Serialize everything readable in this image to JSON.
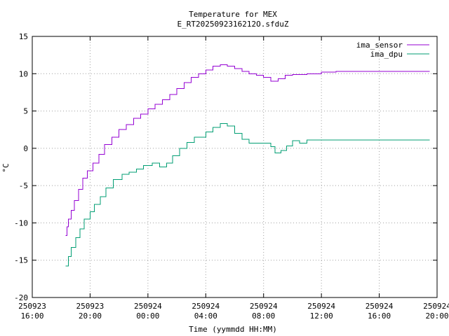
{
  "chart_data": {
    "type": "line",
    "title": "Temperature for MEX",
    "subtitle": "E_RT2025092316212O.sfduZ",
    "xlabel": "Time (yymmdd HH:MM)",
    "ylabel": "°C",
    "xlim_hours": [
      16,
      44
    ],
    "ylim": [
      -20,
      15
    ],
    "yticks": [
      -20,
      -15,
      -10,
      -5,
      0,
      5,
      10,
      15
    ],
    "xticks": [
      {
        "hours": 16,
        "date": "250923",
        "time": "16:00"
      },
      {
        "hours": 20,
        "date": "250923",
        "time": "20:00"
      },
      {
        "hours": 24,
        "date": "250924",
        "time": "00:00"
      },
      {
        "hours": 28,
        "date": "250924",
        "time": "04:00"
      },
      {
        "hours": 32,
        "date": "250924",
        "time": "08:00"
      },
      {
        "hours": 36,
        "date": "250924",
        "time": "12:00"
      },
      {
        "hours": 40,
        "date": "250924",
        "time": "16:00"
      },
      {
        "hours": 44,
        "date": "250924",
        "time": "20:00"
      }
    ],
    "grid": true,
    "legend_position": "top-right",
    "series": [
      {
        "name": "ima_sensor",
        "color": "#9400d3",
        "points": [
          [
            18.3,
            -11.7
          ],
          [
            18.4,
            -10.5
          ],
          [
            18.5,
            -9.5
          ],
          [
            18.7,
            -8.3
          ],
          [
            18.9,
            -7.0
          ],
          [
            19.2,
            -5.5
          ],
          [
            19.5,
            -4.0
          ],
          [
            19.8,
            -3.0
          ],
          [
            20.2,
            -2.0
          ],
          [
            20.6,
            -0.8
          ],
          [
            21.0,
            0.5
          ],
          [
            21.5,
            1.5
          ],
          [
            22.0,
            2.5
          ],
          [
            22.5,
            3.2
          ],
          [
            23.0,
            4.0
          ],
          [
            23.5,
            4.6
          ],
          [
            24.0,
            5.3
          ],
          [
            24.5,
            5.9
          ],
          [
            25.0,
            6.5
          ],
          [
            25.5,
            7.2
          ],
          [
            26.0,
            8.0
          ],
          [
            26.5,
            8.8
          ],
          [
            27.0,
            9.5
          ],
          [
            27.5,
            10.0
          ],
          [
            28.0,
            10.5
          ],
          [
            28.5,
            11.0
          ],
          [
            29.0,
            11.2
          ],
          [
            29.5,
            11.0
          ],
          [
            30.0,
            10.7
          ],
          [
            30.5,
            10.3
          ],
          [
            31.0,
            10.0
          ],
          [
            31.5,
            9.8
          ],
          [
            32.0,
            9.5
          ],
          [
            32.5,
            9.0
          ],
          [
            33.0,
            9.3
          ],
          [
            33.5,
            9.8
          ],
          [
            34.0,
            9.9
          ],
          [
            35.0,
            10.0
          ],
          [
            36.0,
            10.2
          ],
          [
            37.0,
            10.3
          ],
          [
            40.0,
            10.3
          ],
          [
            43.5,
            10.3
          ]
        ]
      },
      {
        "name": "ima_dpu",
        "color": "#009e73",
        "points": [
          [
            18.3,
            -15.8
          ],
          [
            18.5,
            -14.5
          ],
          [
            18.7,
            -13.3
          ],
          [
            19.0,
            -12.0
          ],
          [
            19.3,
            -10.8
          ],
          [
            19.6,
            -9.5
          ],
          [
            20.0,
            -8.5
          ],
          [
            20.3,
            -7.5
          ],
          [
            20.7,
            -6.5
          ],
          [
            21.1,
            -5.3
          ],
          [
            21.6,
            -4.2
          ],
          [
            22.2,
            -3.5
          ],
          [
            22.7,
            -3.2
          ],
          [
            23.2,
            -2.8
          ],
          [
            23.7,
            -2.3
          ],
          [
            24.3,
            -2.0
          ],
          [
            24.8,
            -2.5
          ],
          [
            25.3,
            -2.0
          ],
          [
            25.7,
            -1.0
          ],
          [
            26.2,
            0.0
          ],
          [
            26.7,
            0.8
          ],
          [
            27.2,
            1.5
          ],
          [
            28.0,
            2.2
          ],
          [
            28.5,
            2.8
          ],
          [
            29.0,
            3.3
          ],
          [
            29.5,
            3.0
          ],
          [
            30.0,
            2.0
          ],
          [
            30.5,
            1.2
          ],
          [
            31.0,
            0.7
          ],
          [
            32.0,
            0.7
          ],
          [
            32.5,
            0.2
          ],
          [
            32.8,
            -0.6
          ],
          [
            33.2,
            -0.3
          ],
          [
            33.6,
            0.3
          ],
          [
            34.0,
            1.0
          ],
          [
            34.5,
            0.7
          ],
          [
            35.0,
            1.1
          ],
          [
            38.0,
            1.1
          ],
          [
            40.5,
            1.1
          ],
          [
            43.5,
            1.1
          ]
        ]
      }
    ]
  }
}
